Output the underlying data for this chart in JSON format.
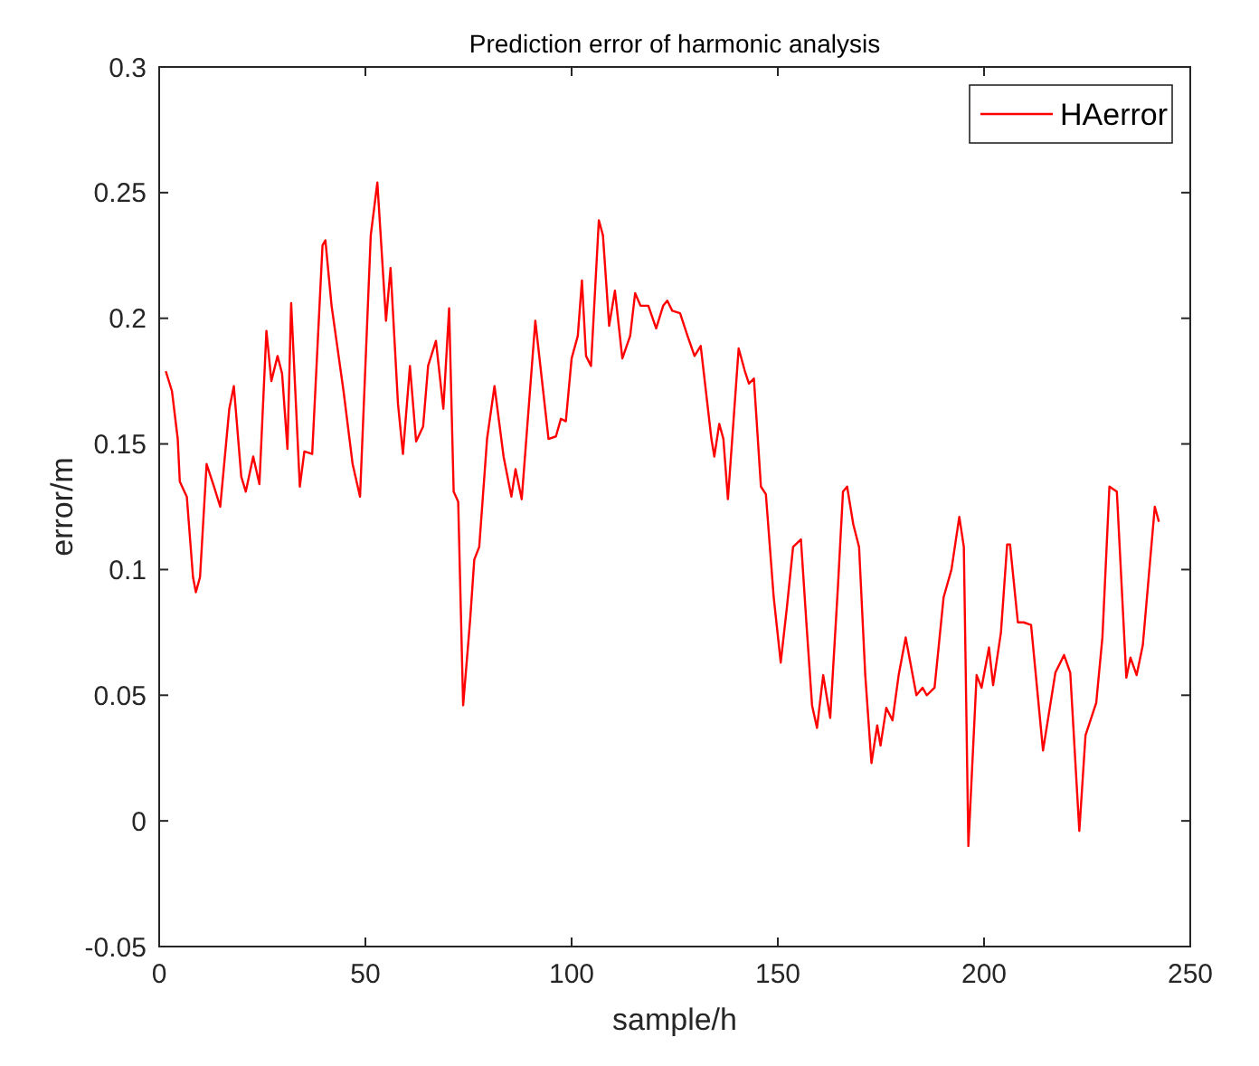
{
  "chart_data": {
    "type": "line",
    "title": "Prediction error of harmonic analysis",
    "xlabel": "sample/h",
    "ylabel": "error/m",
    "xlim": [
      0,
      250
    ],
    "xticks": [
      0,
      50,
      100,
      150,
      200,
      250
    ],
    "ylim": [
      -0.05,
      0.3
    ],
    "yticks": [
      -0.05,
      0,
      0.05,
      0.1,
      0.15,
      0.2,
      0.25,
      0.3
    ],
    "grid": false,
    "legend": "top right",
    "marker": "none",
    "line_style": "solid",
    "series": [
      {
        "name": "HAerror",
        "color": "#ff0000",
        "x": [
          1.6,
          3.1,
          4.5,
          5,
          6.7,
          8.2,
          8.9,
          9.9,
          11.5,
          13.3,
          14.8,
          17,
          18.1,
          19.9,
          21,
          22.8,
          24.3,
          26,
          27.2,
          28.7,
          29.8,
          31.1,
          32,
          34.1,
          35.2,
          37.1,
          39.6,
          40.3,
          41.8,
          44.7,
          46.9,
          48.7,
          51.3,
          52.9,
          55,
          56.1,
          57.9,
          59.1,
          60.8,
          62.3,
          64,
          65.2,
          67.1,
          68.9,
          70.3,
          71.4,
          72.5,
          73.7,
          75.4,
          76.4,
          77.6,
          79.5,
          81.3,
          83.5,
          85.4,
          86.4,
          87.9,
          91.2,
          94.4,
          96.2,
          97.4,
          98.6,
          100,
          101.5,
          102.5,
          103.5,
          104.7,
          106.6,
          107.6,
          109.1,
          110.5,
          112.3,
          114.2,
          115.4,
          116.7,
          118.6,
          120.5,
          122.2,
          123.2,
          124.4,
          126.3,
          128.1,
          129.8,
          131.3,
          133.9,
          134.6,
          135.8,
          136.8,
          137.9,
          140.5,
          142,
          143,
          144.2,
          145.9,
          147.1,
          149,
          150.7,
          152.2,
          153.7,
          155.6,
          157,
          158.3,
          159.5,
          161,
          162.7,
          164.6,
          165.8,
          166.8,
          168.3,
          169.7,
          171.2,
          172.7,
          174.1,
          174.9,
          176.3,
          177.8,
          179.3,
          181,
          183.6,
          185.1,
          186.1,
          188,
          190.2,
          192.1,
          194,
          195.1,
          196.2,
          198.2,
          199.4,
          201.2,
          202.2,
          204.1,
          205.6,
          206.3,
          208.2,
          209.6,
          211.4,
          214.3,
          217.3,
          219.4,
          220.9,
          223.1,
          224.6,
          227.2,
          228.7,
          230.4,
          232.2,
          234.5,
          235.5,
          237,
          238.5,
          241.4,
          242.4
        ],
        "values": [
          0.179,
          0.171,
          0.152,
          0.135,
          0.129,
          0.097,
          0.091,
          0.097,
          0.142,
          0.133,
          0.125,
          0.164,
          0.173,
          0.137,
          0.131,
          0.145,
          0.134,
          0.195,
          0.175,
          0.185,
          0.178,
          0.148,
          0.206,
          0.133,
          0.147,
          0.146,
          0.229,
          0.231,
          0.205,
          0.171,
          0.142,
          0.129,
          0.233,
          0.254,
          0.199,
          0.22,
          0.166,
          0.146,
          0.181,
          0.151,
          0.157,
          0.181,
          0.191,
          0.164,
          0.204,
          0.131,
          0.127,
          0.046,
          0.08,
          0.104,
          0.109,
          0.152,
          0.173,
          0.145,
          0.129,
          0.14,
          0.128,
          0.199,
          0.152,
          0.153,
          0.16,
          0.159,
          0.184,
          0.193,
          0.215,
          0.185,
          0.181,
          0.239,
          0.233,
          0.197,
          0.211,
          0.184,
          0.193,
          0.21,
          0.205,
          0.205,
          0.196,
          0.205,
          0.207,
          0.203,
          0.202,
          0.193,
          0.185,
          0.189,
          0.152,
          0.145,
          0.158,
          0.152,
          0.128,
          0.188,
          0.179,
          0.174,
          0.176,
          0.133,
          0.13,
          0.089,
          0.063,
          0.085,
          0.109,
          0.112,
          0.077,
          0.046,
          0.037,
          0.058,
          0.041,
          0.094,
          0.131,
          0.133,
          0.118,
          0.109,
          0.058,
          0.023,
          0.038,
          0.03,
          0.045,
          0.04,
          0.058,
          0.073,
          0.05,
          0.053,
          0.05,
          0.053,
          0.089,
          0.1,
          0.121,
          0.109,
          -0.01,
          0.058,
          0.053,
          0.069,
          0.054,
          0.075,
          0.11,
          0.11,
          0.079,
          0.079,
          0.078,
          0.028,
          0.059,
          0.066,
          0.059,
          -0.004,
          0.034,
          0.047,
          0.073,
          0.133,
          0.131,
          0.057,
          0.065,
          0.058,
          0.07,
          0.125,
          0.119
        ]
      }
    ]
  }
}
